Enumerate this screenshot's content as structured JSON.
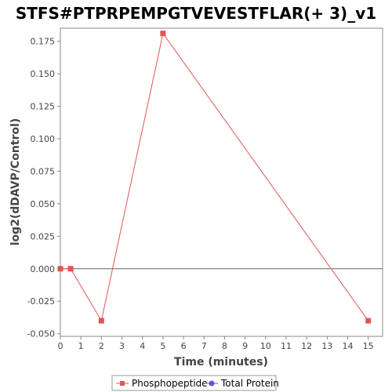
{
  "chart_data": {
    "type": "line",
    "title": "STFS#PTPRPEMPGTVEVESTFLAR(+ 3)_v1",
    "xlabel": "Time (minutes)",
    "ylabel": "log2(dDAVP/Control)",
    "xlim": [
      0,
      15.7
    ],
    "ylim": [
      -0.052,
      0.185
    ],
    "x_ticks": [
      0,
      1,
      2,
      3,
      4,
      5,
      6,
      7,
      8,
      9,
      10,
      11,
      12,
      13,
      14,
      15
    ],
    "y_ticks": [
      -0.05,
      -0.025,
      0.0,
      0.025,
      0.05,
      0.075,
      0.1,
      0.125,
      0.15,
      0.175
    ],
    "y_tick_labels": [
      "-0.050",
      "-0.025",
      "0.000",
      "0.025",
      "0.050",
      "0.075",
      "0.100",
      "0.125",
      "0.150",
      "0.175"
    ],
    "zero_line": true,
    "grid": false,
    "legend_position": "bottom-center",
    "series": [
      {
        "name": "Phosphopeptide",
        "color": "#e05555",
        "marker": "square",
        "points": [
          {
            "x": 0,
            "y": 0.0
          },
          {
            "x": 0.5,
            "y": 0.0
          },
          {
            "x": 2,
            "y": -0.04
          },
          {
            "x": 5,
            "y": 0.181
          },
          {
            "x": 15,
            "y": -0.04
          }
        ]
      },
      {
        "name": "Total Protein",
        "color": "#5555e0",
        "marker": "circle",
        "points": []
      }
    ]
  }
}
